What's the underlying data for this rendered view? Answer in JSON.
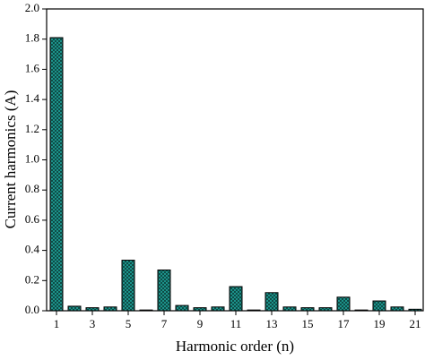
{
  "chart_data": {
    "type": "bar",
    "x_label": "Harmonic order (n)",
    "y_label": "Current harmonics (A)",
    "x": [
      1,
      2,
      3,
      4,
      5,
      6,
      7,
      8,
      9,
      10,
      11,
      12,
      13,
      14,
      15,
      16,
      17,
      18,
      19,
      20,
      21
    ],
    "values": [
      1.81,
      0.03,
      0.02,
      0.025,
      0.335,
      0.005,
      0.27,
      0.035,
      0.02,
      0.025,
      0.16,
      0.005,
      0.12,
      0.025,
      0.02,
      0.02,
      0.09,
      0.005,
      0.065,
      0.025,
      0.01
    ],
    "color": "#1fa59c",
    "xlim": [
      0.45,
      21.45
    ],
    "xticks": [
      1,
      3,
      5,
      7,
      9,
      11,
      13,
      15,
      17,
      19,
      21
    ],
    "ylim": [
      0,
      2
    ],
    "yticks": [
      {
        "value": 0,
        "label": "0.0"
      },
      0.2,
      0.4,
      0.6,
      0.8,
      {
        "value": 1,
        "label": "1.0"
      },
      1.2,
      1.4,
      1.6,
      1.8,
      {
        "value": 2,
        "label": "2.0"
      }
    ]
  }
}
